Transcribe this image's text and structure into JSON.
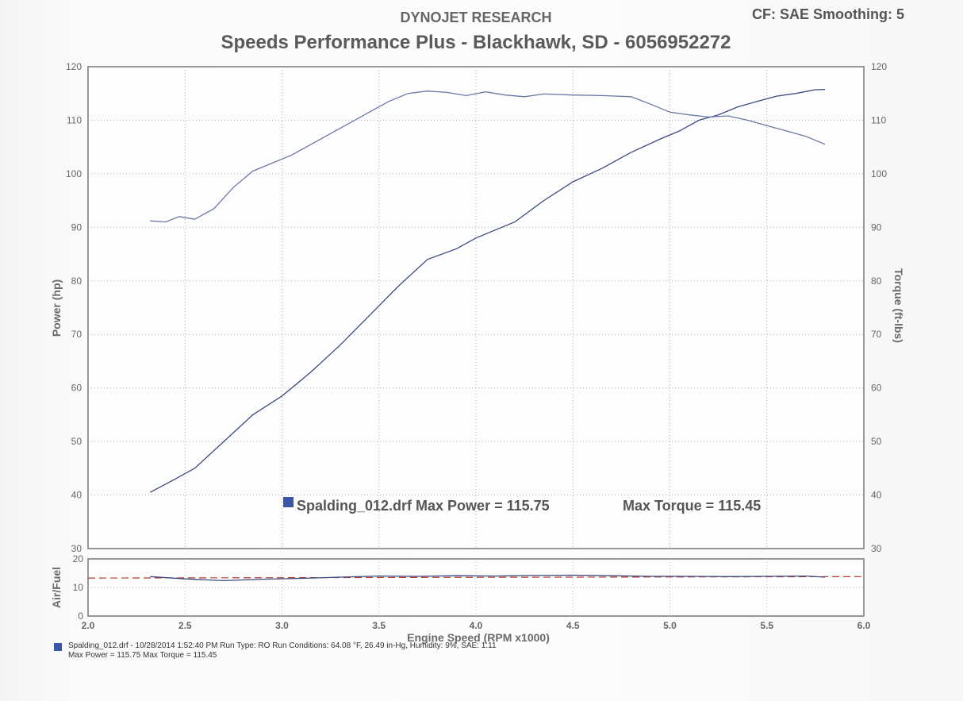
{
  "header": {
    "brand": "DYNOJET RESEARCH",
    "settings": "CF: SAE  Smoothing: 5",
    "title": "Speeds Performance Plus - Blackhawk, SD - 6056952272"
  },
  "legend": {
    "text1": "Spalding_012.drf Max Power = 115.75",
    "text2": "Max Torque = 115.45",
    "color": "#3a56a8"
  },
  "footer": {
    "line1": "Spalding_012.drf - 10/28/2014 1:52:40 PM  Run Type: RO  Run Conditions: 64.08 °F, 26.49 in-Hg, Humidity: 9%, SAE: 1.11",
    "line2": "Max Power = 115.75  Max Torque = 115.45"
  },
  "chart_data": [
    {
      "type": "line",
      "xlabel": "Engine Speed (RPM x1000)",
      "ylabel": "Power (hp)",
      "y2label": "Torque (ft-lbs)",
      "xlim": [
        2.0,
        6.0
      ],
      "ylim": [
        30,
        120
      ],
      "y2lim": [
        30,
        120
      ],
      "xticks": [
        "2.0",
        "2.5",
        "3.0",
        "3.5",
        "4.0",
        "4.5",
        "5.0",
        "5.5",
        "6.0"
      ],
      "yticks": [
        "30",
        "40",
        "50",
        "60",
        "70",
        "80",
        "90",
        "100",
        "110",
        "120"
      ],
      "grid": true,
      "colors": {
        "power": "#3b4a80",
        "torque": "#6a78a8"
      },
      "series": [
        {
          "key": "power",
          "x": [
            2.32,
            2.45,
            2.55,
            2.7,
            2.85,
            3.0,
            3.15,
            3.3,
            3.45,
            3.6,
            3.75,
            3.9,
            4.0,
            4.1,
            4.2,
            4.35,
            4.5,
            4.65,
            4.8,
            4.95,
            5.05,
            5.15,
            5.25,
            5.35,
            5.45,
            5.55,
            5.65,
            5.75,
            5.8
          ],
          "y": [
            40.5,
            43,
            45,
            50,
            55,
            58.5,
            63,
            68,
            73.5,
            79,
            84,
            86,
            88,
            89.5,
            91,
            95,
            98.5,
            101,
            104,
            106.5,
            108,
            110,
            111,
            112.5,
            113.5,
            114.5,
            115,
            115.7,
            115.75
          ]
        },
        {
          "key": "torque",
          "x": [
            2.32,
            2.4,
            2.47,
            2.55,
            2.65,
            2.75,
            2.85,
            2.95,
            3.05,
            3.15,
            3.25,
            3.35,
            3.45,
            3.55,
            3.65,
            3.75,
            3.85,
            3.95,
            4.05,
            4.15,
            4.25,
            4.35,
            4.5,
            4.65,
            4.8,
            4.9,
            5.0,
            5.1,
            5.2,
            5.3,
            5.4,
            5.5,
            5.6,
            5.7,
            5.8
          ],
          "y": [
            91.2,
            91,
            92,
            91.5,
            93.5,
            97.5,
            100.5,
            102,
            103.5,
            105.5,
            107.5,
            109.5,
            111.5,
            113.5,
            115,
            115.45,
            115.2,
            114.6,
            115.3,
            114.7,
            114.4,
            114.9,
            114.7,
            114.6,
            114.4,
            113,
            111.5,
            111,
            110.6,
            110.8,
            110,
            109,
            108,
            107,
            105.5
          ]
        }
      ]
    },
    {
      "type": "line",
      "ylabel": "Air/Fuel",
      "xlabel": "Engine Speed (RPM x1000)",
      "xlim": [
        2.0,
        6.0
      ],
      "ylim": [
        0,
        20
      ],
      "yticks": [
        "0",
        "10",
        "20"
      ],
      "series": [
        {
          "key": "afr",
          "x": [
            2.32,
            2.5,
            2.7,
            2.9,
            3.1,
            3.3,
            3.5,
            3.7,
            3.9,
            4.1,
            4.3,
            4.5,
            4.7,
            4.9,
            5.1,
            5.3,
            5.5,
            5.7,
            5.8
          ],
          "y": [
            13.8,
            13.0,
            12.4,
            12.9,
            13.2,
            13.6,
            14.0,
            13.9,
            14.1,
            14.0,
            14.2,
            14.3,
            14.1,
            13.9,
            13.9,
            13.8,
            13.9,
            14.0,
            13.6
          ]
        },
        {
          "key": "target",
          "x": [
            2.0,
            6.0
          ],
          "y": [
            13.3,
            13.8
          ]
        }
      ]
    }
  ]
}
